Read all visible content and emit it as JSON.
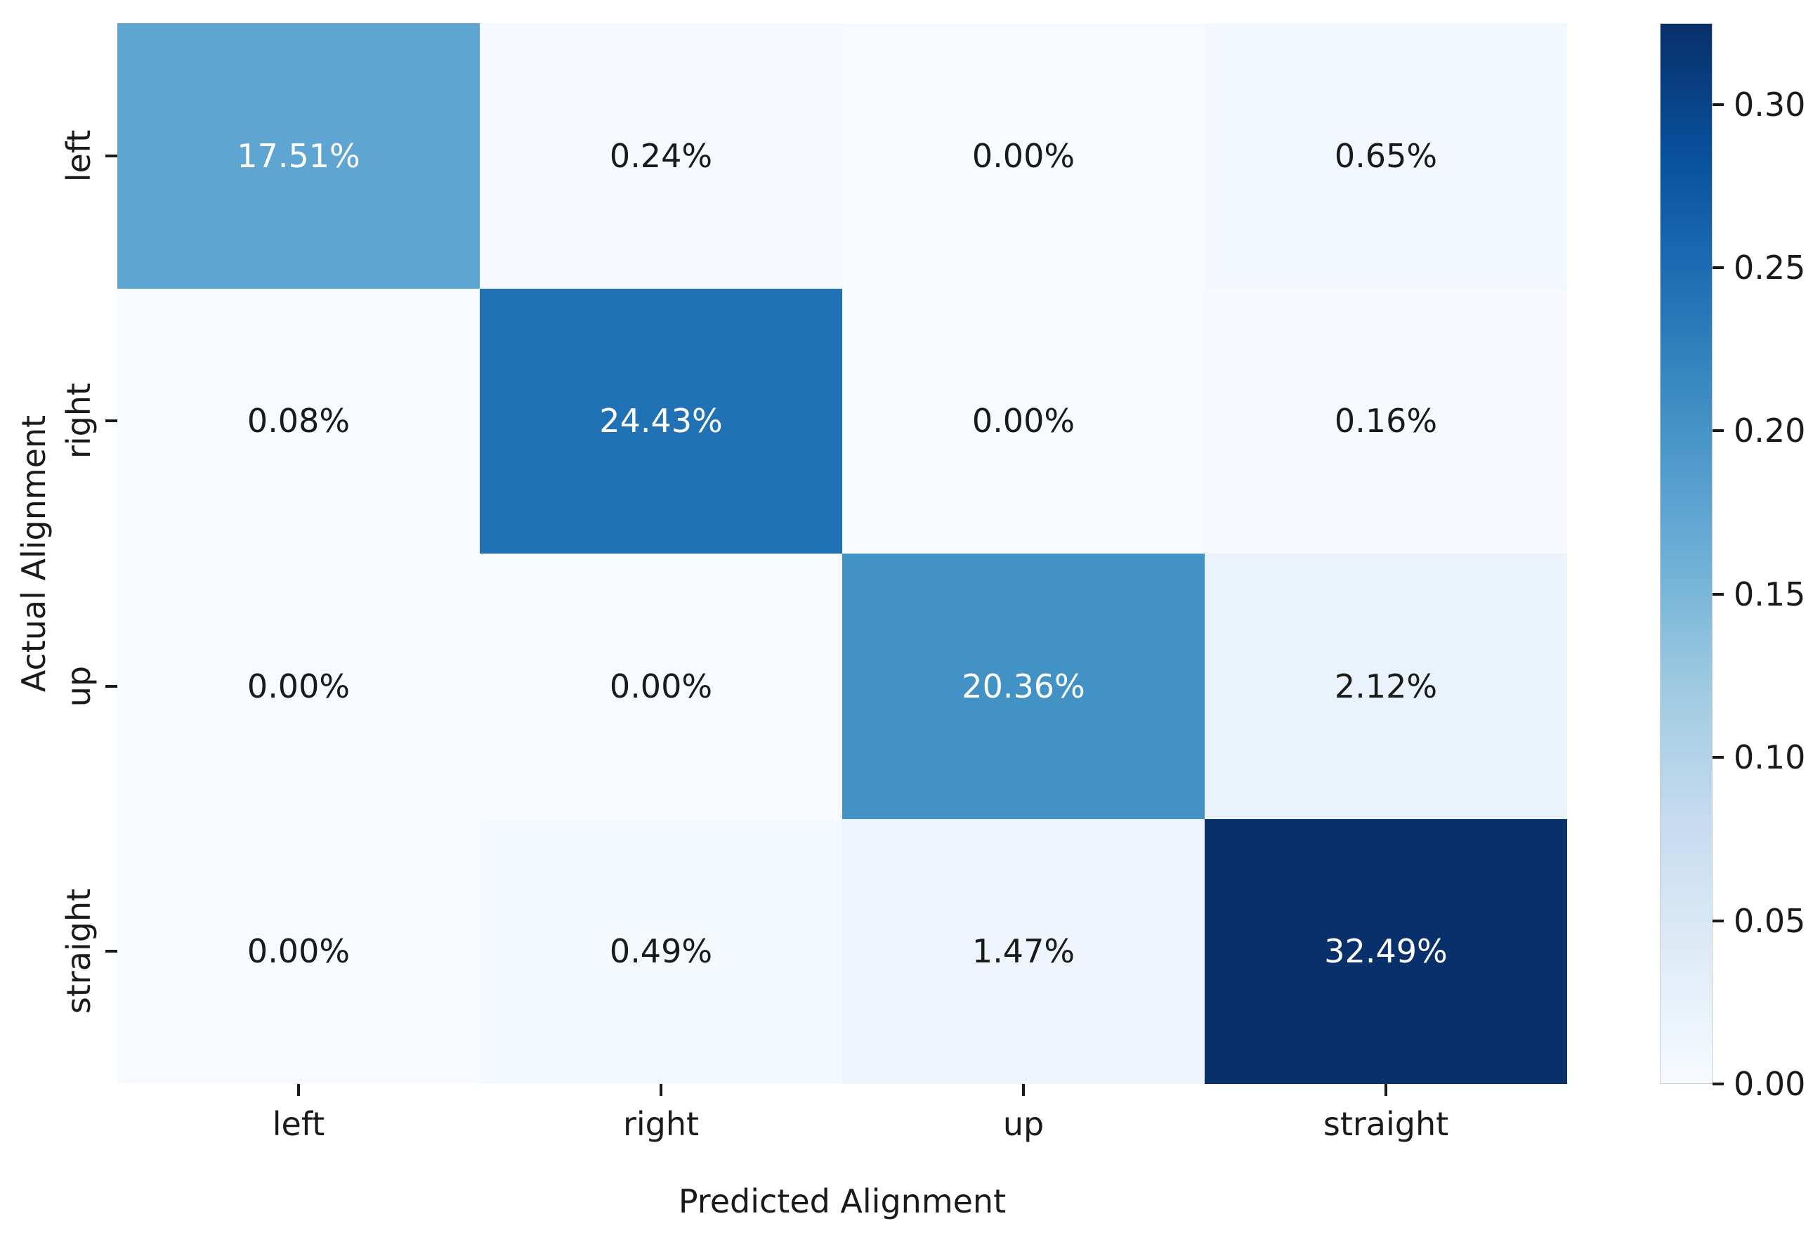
{
  "chart_data": {
    "type": "heatmap",
    "title": "",
    "xlabel": "Predicted Alignment",
    "ylabel": "Actual Alignment",
    "x_categories": [
      "left",
      "right",
      "up",
      "straight"
    ],
    "y_categories": [
      "left",
      "right",
      "up",
      "straight"
    ],
    "values": [
      [
        0.1751,
        0.0024,
        0.0,
        0.0065
      ],
      [
        0.0008,
        0.2443,
        0.0,
        0.0016
      ],
      [
        0.0,
        0.0,
        0.2036,
        0.0212
      ],
      [
        0.0,
        0.0049,
        0.0147,
        0.3249
      ]
    ],
    "cell_labels": [
      [
        "17.51%",
        "0.24%",
        "0.00%",
        "0.65%"
      ],
      [
        "0.08%",
        "24.43%",
        "0.00%",
        "0.16%"
      ],
      [
        "0.00%",
        "0.00%",
        "20.36%",
        "2.12%"
      ],
      [
        "0.00%",
        "0.49%",
        "1.47%",
        "32.49%"
      ]
    ],
    "vmin": 0.0,
    "vmax": 0.3249,
    "grid": false,
    "colormap": "Blues",
    "colormap_stops": [
      {
        "pos": 0.0,
        "color": "#f7fbff"
      },
      {
        "pos": 0.125,
        "color": "#deebf7"
      },
      {
        "pos": 0.25,
        "color": "#c6dbef"
      },
      {
        "pos": 0.375,
        "color": "#9ecae1"
      },
      {
        "pos": 0.5,
        "color": "#6baed6"
      },
      {
        "pos": 0.625,
        "color": "#4292c6"
      },
      {
        "pos": 0.75,
        "color": "#2171b5"
      },
      {
        "pos": 0.875,
        "color": "#08519c"
      },
      {
        "pos": 1.0,
        "color": "#08306b"
      }
    ],
    "annotation_colors": {
      "on_dark_cell": "#ffffff",
      "on_light_cell": "#1a1a1a"
    },
    "colorbar": {
      "position": "right",
      "tick_values": [
        0.3,
        0.25,
        0.2,
        0.15,
        0.1,
        0.05,
        0.0
      ],
      "tick_labels": [
        "0.30",
        "0.25",
        "0.20",
        "0.15",
        "0.10",
        "0.05",
        "0.00"
      ]
    }
  }
}
